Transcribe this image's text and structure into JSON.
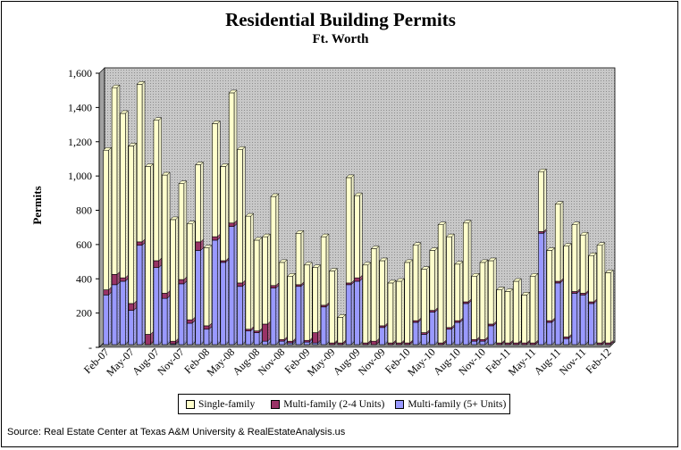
{
  "chart_data": {
    "type": "bar",
    "stacked": true,
    "title": "Residential Building Permits",
    "subtitle": "Ft. Worth",
    "ylabel": "Permits",
    "xlabel": "",
    "ylim": [
      0,
      1600
    ],
    "yticks": [
      0,
      200,
      400,
      600,
      800,
      1000,
      1200,
      1400,
      1600
    ],
    "ytick_labels": [
      "-",
      "200",
      "400",
      "600",
      "800",
      "1,000",
      "1,200",
      "1,400",
      "1,600"
    ],
    "grid": false,
    "legend_position": "bottom",
    "source": "Source: Real Estate Center at Texas A&M University & RealEstateAnalysis.us",
    "categories": [
      "Feb-07",
      "Mar-07",
      "Apr-07",
      "May-07",
      "Jun-07",
      "Jul-07",
      "Aug-07",
      "Sep-07",
      "Oct-07",
      "Nov-07",
      "Dec-07",
      "Jan-08",
      "Feb-08",
      "Mar-08",
      "Apr-08",
      "May-08",
      "Jun-08",
      "Jul-08",
      "Aug-08",
      "Sep-08",
      "Oct-08",
      "Nov-08",
      "Dec-08",
      "Jan-09",
      "Feb-09",
      "Mar-09",
      "Apr-09",
      "May-09",
      "Jun-09",
      "Jul-09",
      "Aug-09",
      "Sep-09",
      "Oct-09",
      "Nov-09",
      "Dec-09",
      "Jan-10",
      "Feb-10",
      "Mar-10",
      "Apr-10",
      "May-10",
      "Jun-10",
      "Jul-10",
      "Aug-10",
      "Sep-10",
      "Oct-10",
      "Nov-10",
      "Dec-10",
      "Jan-11",
      "Feb-11",
      "Mar-11",
      "Apr-11",
      "May-11",
      "Jun-11",
      "Jul-11",
      "Aug-11",
      "Sep-11",
      "Oct-11",
      "Nov-11",
      "Dec-11",
      "Jan-12",
      "Feb-12"
    ],
    "tick_labels": [
      "Feb-07",
      "May-07",
      "Aug-07",
      "Nov-07",
      "Feb-08",
      "May-08",
      "Aug-08",
      "Nov-08",
      "Feb-09",
      "May-09",
      "Aug-09",
      "Nov-09",
      "Feb-10",
      "May-10",
      "Aug-10",
      "Nov-10",
      "Feb-11",
      "May-11",
      "Aug-11",
      "Nov-11",
      "Feb-12"
    ],
    "colors": {
      "single": "#FFFFCC",
      "multi24": "#993366",
      "multi5": "#9999FF",
      "plot_bg": "#C0C0C0"
    },
    "series": [
      {
        "name": "Single-family",
        "color": "#FFFFCC",
        "values": [
          815,
          1090,
          960,
          920,
          920,
          980,
          820,
          690,
          710,
          560,
          560,
          450,
          455,
          660,
          550,
          760,
          780,
          660,
          530,
          510,
          520,
          450,
          380,
          300,
          440,
          380,
          400,
          420,
          150,
          615,
          480,
          455,
          540,
          380,
          350,
          360,
          470,
          440,
          370,
          350,
          690,
          530,
          330,
          460,
          370,
          450,
          370,
          310,
          300,
          360,
          280,
          390,
          350,
          410,
          450,
          530,
          390,
          340,
          270,
          570,
          410
        ]
      },
      {
        "name": "Multi-family (2-4 Units)",
        "color": "#993366",
        "values": [
          30,
          60,
          20,
          40,
          20,
          60,
          40,
          30,
          15,
          25,
          20,
          50,
          20,
          20,
          10,
          20,
          20,
          10,
          10,
          100,
          15,
          10,
          10,
          10,
          10,
          60,
          10,
          10,
          10,
          10,
          20,
          10,
          20,
          10,
          10,
          10,
          10,
          10,
          10,
          10,
          10,
          10,
          10,
          10,
          10,
          10,
          10,
          10,
          10,
          10,
          10,
          10,
          10,
          10,
          10,
          10,
          10,
          10,
          10,
          10,
          10
        ]
      },
      {
        "name": "Multi-family (5+ Units)",
        "color": "#9999FF",
        "values": [
          290,
          350,
          370,
          200,
          580,
          0,
          450,
          270,
          5,
          355,
          125,
          550,
          90,
          610,
          480,
          690,
          340,
          80,
          70,
          20,
          330,
          20,
          10,
          340,
          15,
          10,
          220,
          0,
          0,
          350,
          370,
          0,
          0,
          100,
          0,
          0,
          0,
          130,
          60,
          190,
          0,
          90,
          130,
          240,
          20,
          20,
          110,
          0,
          0,
          0,
          0,
          0,
          650,
          130,
          360,
          35,
          300,
          290,
          240,
          0,
          0
        ]
      }
    ]
  }
}
